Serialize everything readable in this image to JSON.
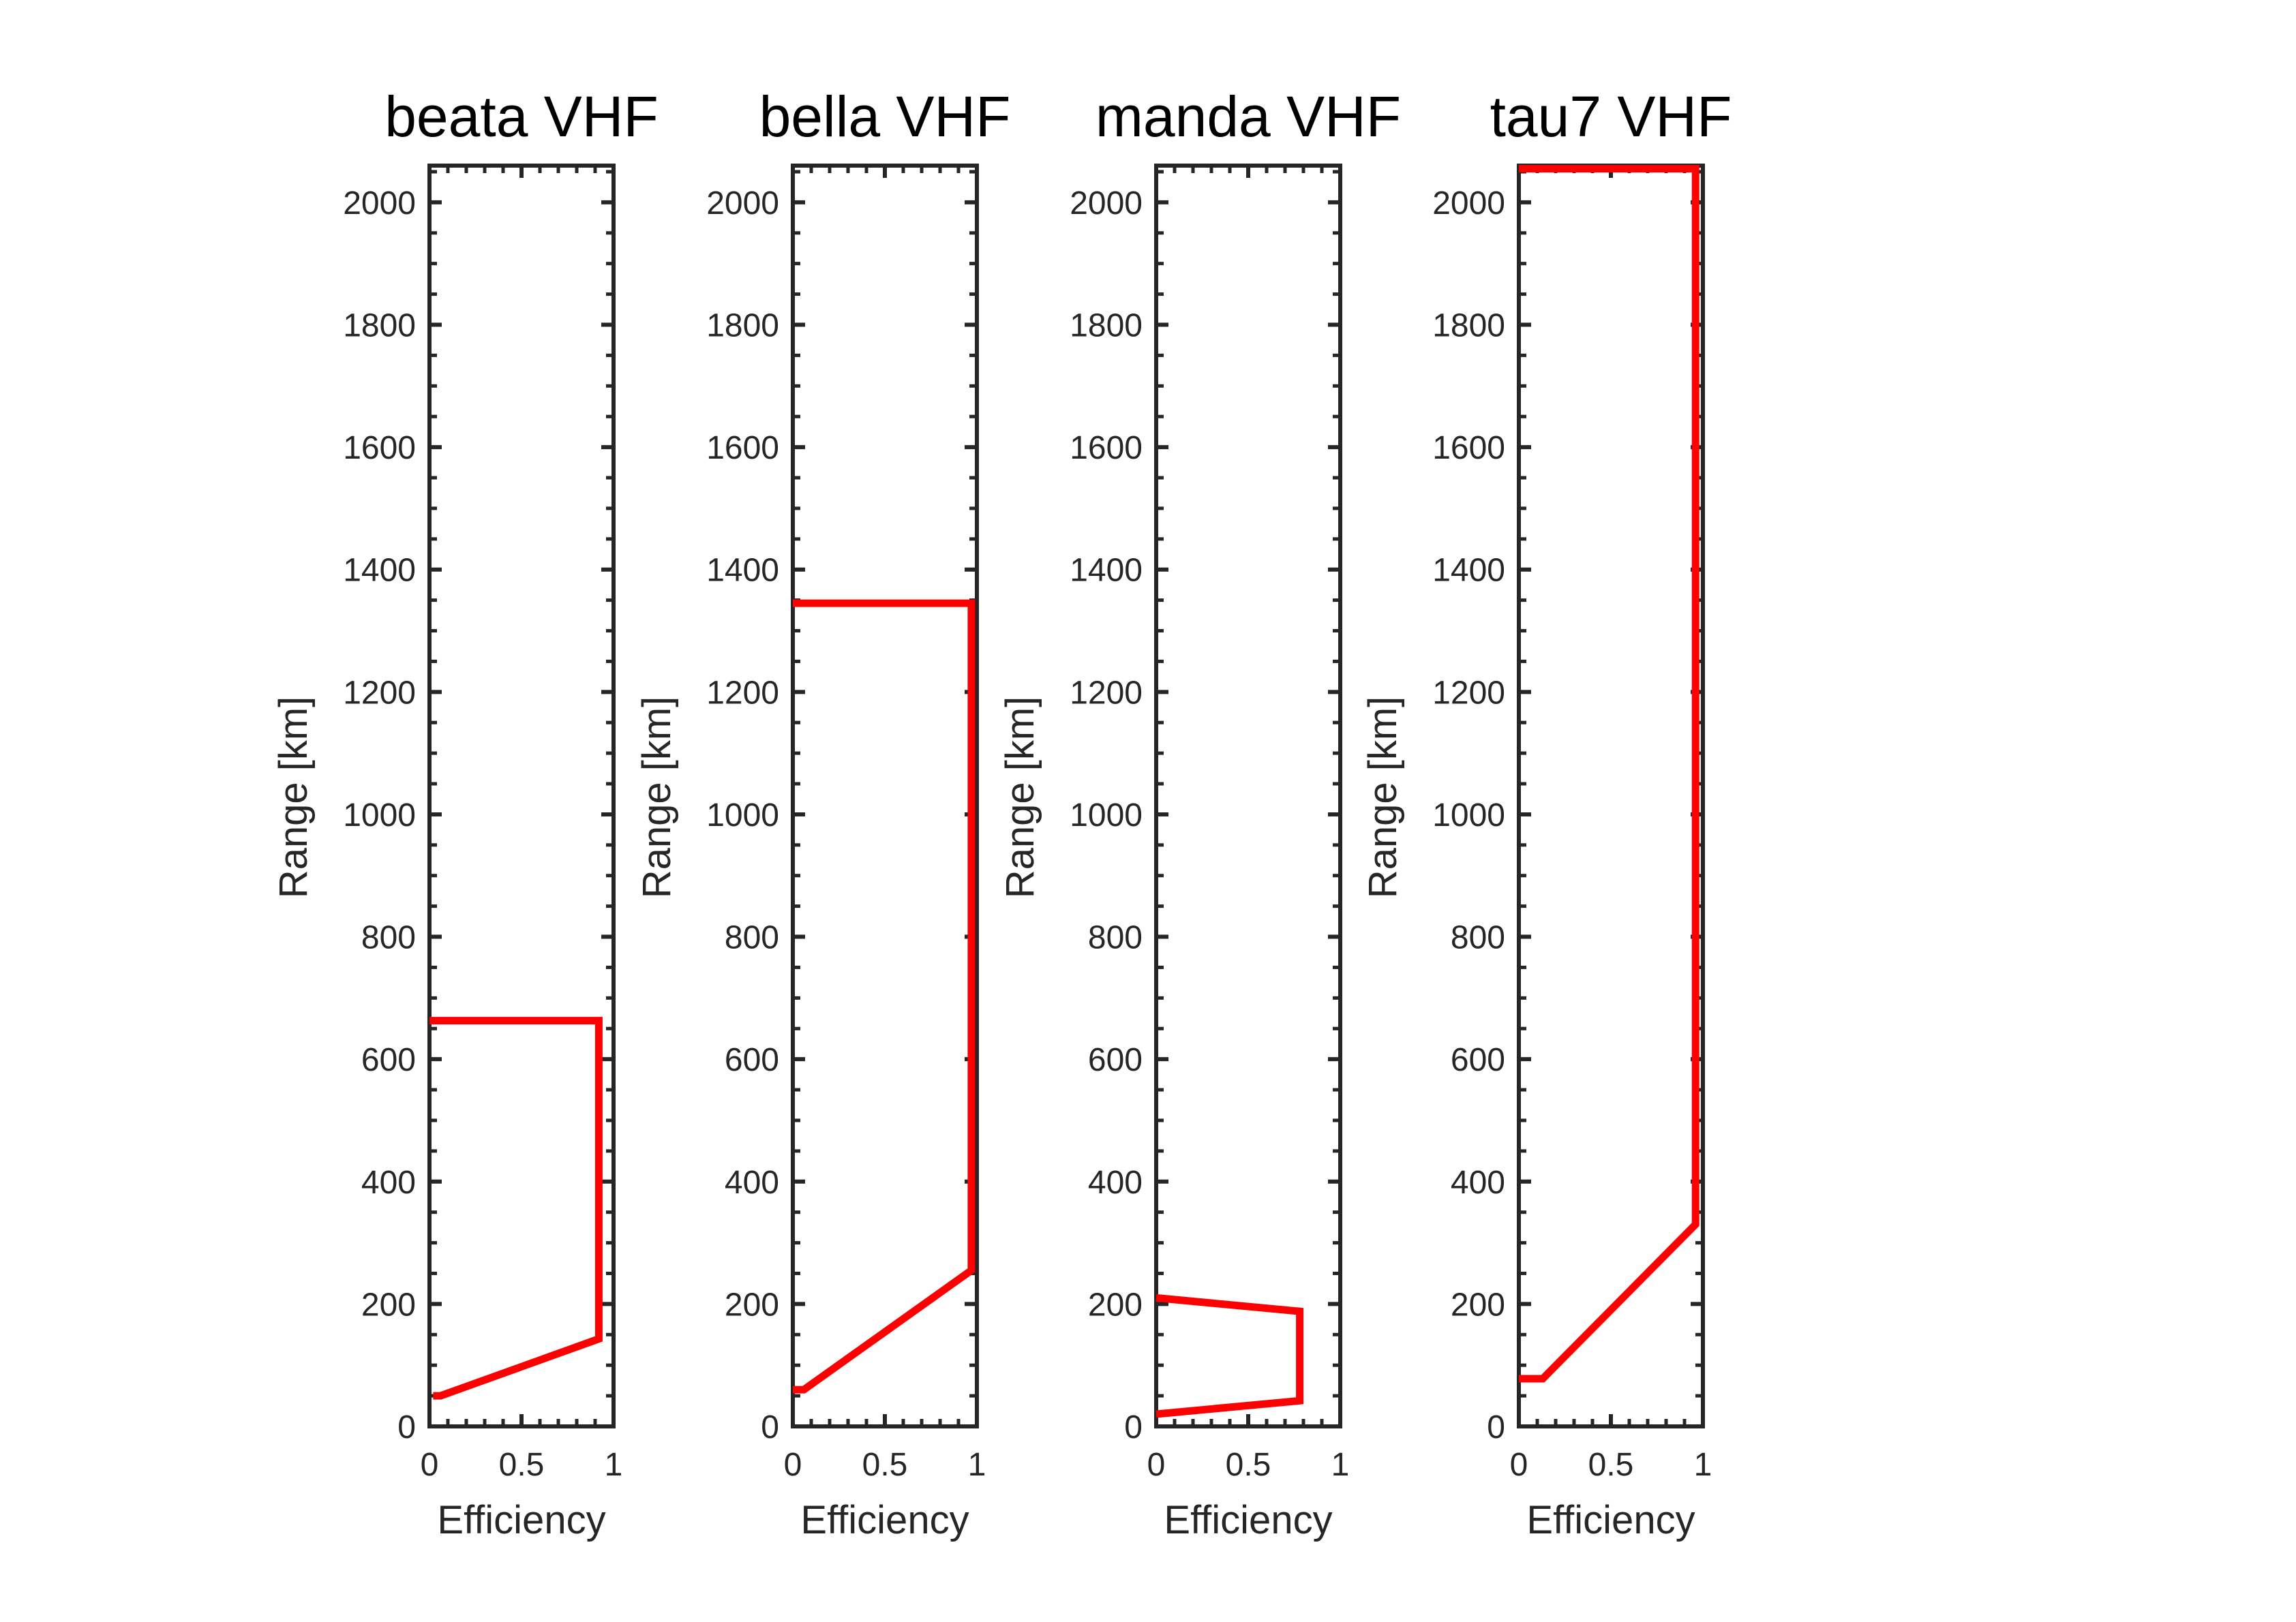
{
  "chart_data": [
    {
      "type": "line",
      "title": "beata VHF",
      "xlabel": "Efficiency",
      "ylabel": "Range [km]",
      "xlim": [
        0,
        1
      ],
      "ylim": [
        0,
        2060
      ],
      "xticks": [
        "0",
        "0.5",
        "1"
      ],
      "yticks": [
        "0",
        "200",
        "400",
        "600",
        "800",
        "1000",
        "1200",
        "1400",
        "1600",
        "1800",
        "2000"
      ],
      "grid": false,
      "series": [
        {
          "x": [
            0.02,
            0.06,
            0.92,
            0.92,
            0.0
          ],
          "y": [
            50,
            50,
            143,
            663,
            663
          ]
        }
      ]
    },
    {
      "type": "line",
      "title": "bella VHF",
      "xlabel": "Efficiency",
      "ylabel": "Range [km]",
      "xlim": [
        0,
        1
      ],
      "ylim": [
        0,
        2060
      ],
      "xticks": [
        "0",
        "0.5",
        "1"
      ],
      "yticks": [
        "0",
        "200",
        "400",
        "600",
        "800",
        "1000",
        "1200",
        "1400",
        "1600",
        "1800",
        "2000"
      ],
      "grid": false,
      "series": [
        {
          "x": [
            0.0,
            0.06,
            0.97,
            0.97,
            0.0
          ],
          "y": [
            60,
            60,
            255,
            1345,
            1345
          ]
        }
      ]
    },
    {
      "type": "line",
      "title": "manda VHF",
      "xlabel": "Efficiency",
      "ylabel": "Range [km]",
      "xlim": [
        0,
        1
      ],
      "ylim": [
        0,
        2060
      ],
      "xticks": [
        "0",
        "0.5",
        "1"
      ],
      "yticks": [
        "0",
        "200",
        "400",
        "600",
        "800",
        "1000",
        "1200",
        "1400",
        "1600",
        "1800",
        "2000"
      ],
      "grid": false,
      "series": [
        {
          "x": [
            0.0,
            0.78,
            0.78,
            0.0
          ],
          "y": [
            20,
            42,
            188,
            210
          ]
        }
      ]
    },
    {
      "type": "line",
      "title": "tau7 VHF",
      "xlabel": "Efficiency",
      "ylabel": "Range [km]",
      "xlim": [
        0,
        1
      ],
      "ylim": [
        0,
        2060
      ],
      "xticks": [
        "0",
        "0.5",
        "1"
      ],
      "yticks": [
        "0",
        "200",
        "400",
        "600",
        "800",
        "1000",
        "1200",
        "1400",
        "1600",
        "1800",
        "2000"
      ],
      "grid": false,
      "series": [
        {
          "x": [
            0.0,
            0.13,
            0.96,
            0.96,
            0.0
          ],
          "y": [
            78,
            78,
            330,
            2055,
            2055
          ]
        }
      ]
    }
  ],
  "colors": {
    "line": "#ff0000",
    "axes": "#262626",
    "title": "#000000"
  }
}
